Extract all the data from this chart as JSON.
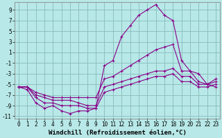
{
  "x": [
    0,
    1,
    2,
    3,
    4,
    5,
    6,
    7,
    8,
    9,
    10,
    11,
    12,
    13,
    14,
    15,
    16,
    17,
    18,
    19,
    20,
    21,
    22,
    23
  ],
  "line1": [
    -5.5,
    -6.0,
    -8.5,
    -9.5,
    -9.0,
    -10.0,
    -10.5,
    -10.0,
    -10.0,
    -9.5,
    -1.5,
    -0.5,
    4.0,
    6.0,
    8.0,
    9.0,
    10.0,
    8.0,
    7.0,
    -0.5,
    -2.5,
    -3.0,
    -5.0,
    -5.5
  ],
  "line2": [
    -5.5,
    -5.5,
    -6.5,
    -7.0,
    -7.5,
    -7.5,
    -7.5,
    -7.5,
    -7.5,
    -7.5,
    -4.0,
    -3.5,
    -2.5,
    -1.5,
    -0.5,
    0.5,
    1.5,
    2.0,
    2.5,
    -2.5,
    -2.5,
    -4.5,
    -5.0,
    -4.0
  ],
  "line3": [
    -5.5,
    -5.5,
    -7.0,
    -7.5,
    -8.0,
    -8.0,
    -8.0,
    -8.5,
    -9.0,
    -9.0,
    -5.5,
    -5.0,
    -4.5,
    -4.0,
    -3.5,
    -3.0,
    -2.5,
    -2.5,
    -2.0,
    -3.5,
    -3.5,
    -5.0,
    -5.0,
    -4.5
  ],
  "line4": [
    -5.5,
    -5.5,
    -7.5,
    -8.5,
    -8.5,
    -9.0,
    -9.0,
    -9.0,
    -9.5,
    -9.5,
    -6.5,
    -6.0,
    -5.5,
    -5.0,
    -4.5,
    -4.0,
    -3.5,
    -3.5,
    -3.0,
    -4.5,
    -4.5,
    -5.5,
    -5.5,
    -5.0
  ],
  "bg_color": "#b8e8e8",
  "line_color": "#880088",
  "grid_color": "#88bbbb",
  "xlabel": "Windchill (Refroidissement éolien,°C)",
  "ylim": [
    -11.5,
    10.5
  ],
  "xlim": [
    -0.5,
    23.5
  ],
  "yticks": [
    -11,
    -9,
    -7,
    -5,
    -3,
    -1,
    1,
    3,
    5,
    7,
    9
  ],
  "xticks": [
    0,
    1,
    2,
    3,
    4,
    5,
    6,
    7,
    8,
    9,
    10,
    11,
    12,
    13,
    14,
    15,
    16,
    17,
    18,
    19,
    20,
    21,
    22,
    23
  ],
  "tick_fontsize": 5.5,
  "xlabel_fontsize": 6.5
}
